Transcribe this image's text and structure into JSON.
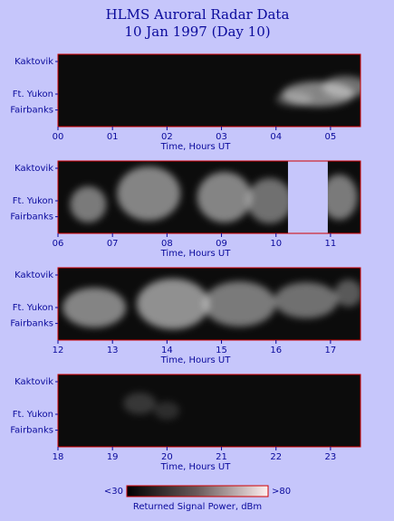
{
  "header": {
    "title": "HLMS Auroral Radar Data",
    "subtitle": "10 Jan 1997 (Day 10)"
  },
  "chart_data": [
    {
      "type": "heatmap",
      "xlabel": "Time, Hours UT",
      "y_categories": [
        "Kaktovik",
        "Ft. Yukon",
        "Fairbanks"
      ],
      "xlim": [
        0,
        5.55
      ],
      "xticks": [
        {
          "value": 0,
          "label": "00"
        },
        {
          "value": 1,
          "label": "01"
        },
        {
          "value": 2,
          "label": "02"
        },
        {
          "value": 3,
          "label": "03"
        },
        {
          "value": 4,
          "label": "04"
        },
        {
          "value": 5,
          "label": "05"
        }
      ]
    },
    {
      "type": "heatmap",
      "xlabel": "Time, Hours UT",
      "y_categories": [
        "Kaktovik",
        "Ft. Yukon",
        "Fairbanks"
      ],
      "xlim": [
        6,
        11.55
      ],
      "xticks": [
        {
          "value": 6,
          "label": "06"
        },
        {
          "value": 7,
          "label": "07"
        },
        {
          "value": 8,
          "label": "08"
        },
        {
          "value": 9,
          "label": "09"
        },
        10,
        11
      ],
      "data_gap": [
        10.22,
        10.95
      ]
    },
    {
      "type": "heatmap",
      "xlabel": "Time, Hours UT",
      "y_categories": [
        "Kaktovik",
        "Ft. Yukon",
        "Fairbanks"
      ],
      "xlim": [
        12,
        17.55
      ],
      "xticks": [
        12,
        13,
        14,
        15,
        16,
        17
      ]
    },
    {
      "type": "heatmap",
      "xlabel": "Time, Hours UT",
      "y_categories": [
        "Kaktovik",
        "Ft. Yukon",
        "Fairbanks"
      ],
      "xlim": [
        18,
        23.55
      ],
      "xticks": [
        18,
        19,
        20,
        21,
        22,
        23
      ]
    }
  ],
  "colorbar": {
    "label": "Returned Signal Power, dBm",
    "lim": [
      30,
      80
    ],
    "ticks": [
      {
        "value": 30,
        "label": "<30"
      },
      {
        "value": 80,
        "label": ">80"
      }
    ]
  }
}
